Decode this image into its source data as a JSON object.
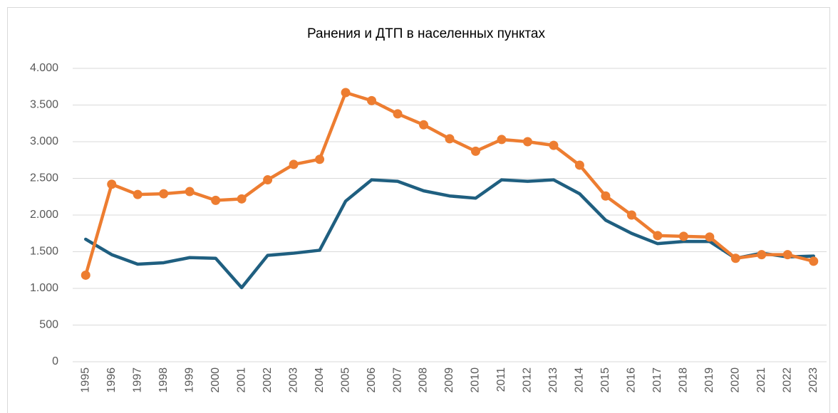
{
  "chart_data": {
    "type": "line",
    "title": "Ранения и ДТП  в населенных пунктах",
    "categories": [
      "1995",
      "1996",
      "1997",
      "1998",
      "1999",
      "2000",
      "2001",
      "2002",
      "2003",
      "2004",
      "2005",
      "2006",
      "2007",
      "2008",
      "2009",
      "2010",
      "2011",
      "2012",
      "2013",
      "2014",
      "2015",
      "2016",
      "2017",
      "2018",
      "2019",
      "2020",
      "2021",
      "2022",
      "2023"
    ],
    "series": [
      {
        "color": "#1f5f80",
        "markers": false,
        "values": [
          1670,
          1460,
          1330,
          1350,
          1420,
          1410,
          1010,
          1450,
          1480,
          1520,
          2190,
          2480,
          2460,
          2330,
          2260,
          2230,
          2480,
          2460,
          2480,
          2290,
          1930,
          1750,
          1610,
          1640,
          1640,
          1410,
          1480,
          1430,
          1440
        ]
      },
      {
        "color": "#ed7d31",
        "markers": true,
        "values": [
          1180,
          2420,
          2280,
          2290,
          2320,
          2200,
          2220,
          2480,
          2690,
          2760,
          3670,
          3560,
          3380,
          3230,
          3040,
          2870,
          3030,
          3000,
          2950,
          2680,
          2260,
          2000,
          1720,
          1710,
          1700,
          1410,
          1460,
          1460,
          1370
        ]
      }
    ],
    "ylim": [
      0,
      4000
    ],
    "yticks": [
      0,
      500,
      {
        "value": 1000,
        "label": "1.000"
      },
      {
        "value": 1500,
        "label": "1.500"
      },
      {
        "value": 2000,
        "label": "2.000"
      },
      {
        "value": 2500,
        "label": "2.500"
      },
      {
        "value": 3000,
        "label": "3.000"
      },
      {
        "value": 3500,
        "label": "3.500"
      },
      {
        "value": 4000,
        "label": "4.000"
      }
    ],
    "grid": true
  }
}
